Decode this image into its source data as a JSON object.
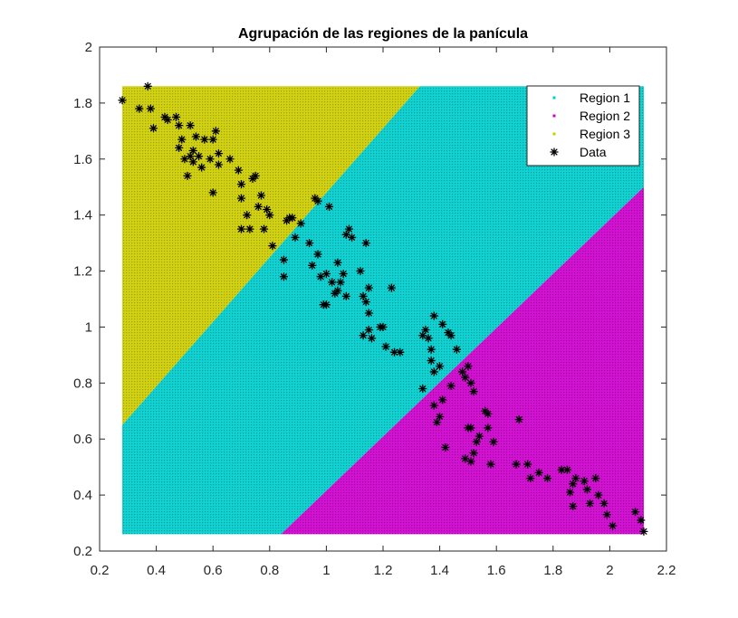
{
  "chart_data": {
    "type": "scatter",
    "title": "Agrupación de las regiones de la panícula",
    "xlabel": "",
    "ylabel": "",
    "xlim": [
      0.2,
      2.2
    ],
    "ylim": [
      0.2,
      2.0
    ],
    "xticks": [
      "0.2",
      "0.4",
      "0.6",
      "0.8",
      "1",
      "1.2",
      "1.4",
      "1.6",
      "1.8",
      "2",
      "2.2"
    ],
    "yticks": [
      "0.2",
      "0.4",
      "0.6",
      "0.8",
      "1",
      "1.2",
      "1.4",
      "1.6",
      "1.8",
      "2"
    ],
    "grid": false,
    "legend_position": "top-right",
    "colors": {
      "region1": "#00cccc",
      "region2": "#cc00cc",
      "region3": "#cccc00",
      "data": "#000000",
      "axes": "#262626"
    },
    "regions": [
      {
        "name": "Region 1",
        "color": "#00cccc",
        "polygon": [
          [
            0.28,
            0.26
          ],
          [
            0.84,
            0.26
          ],
          [
            2.12,
            1.5
          ],
          [
            2.12,
            1.86
          ],
          [
            1.33,
            1.86
          ],
          [
            0.28,
            0.65
          ]
        ]
      },
      {
        "name": "Region 2",
        "color": "#cc00cc",
        "polygon": [
          [
            0.84,
            0.26
          ],
          [
            2.12,
            0.26
          ],
          [
            2.12,
            1.5
          ]
        ]
      },
      {
        "name": "Region 3",
        "color": "#cccc00",
        "polygon": [
          [
            0.28,
            0.65
          ],
          [
            0.28,
            1.86
          ],
          [
            1.33,
            1.86
          ]
        ]
      }
    ],
    "series": [
      {
        "name": "Data",
        "marker": "*",
        "color": "#000000",
        "points": [
          [
            0.28,
            1.81
          ],
          [
            0.34,
            1.78
          ],
          [
            0.37,
            1.86
          ],
          [
            0.38,
            1.78
          ],
          [
            0.39,
            1.71
          ],
          [
            0.43,
            1.75
          ],
          [
            0.44,
            1.74
          ],
          [
            0.47,
            1.75
          ],
          [
            0.48,
            1.72
          ],
          [
            0.48,
            1.64
          ],
          [
            0.49,
            1.67
          ],
          [
            0.5,
            1.6
          ],
          [
            0.51,
            1.54
          ],
          [
            0.52,
            1.72
          ],
          [
            0.52,
            1.61
          ],
          [
            0.53,
            1.59
          ],
          [
            0.53,
            1.63
          ],
          [
            0.54,
            1.68
          ],
          [
            0.55,
            1.61
          ],
          [
            0.56,
            1.57
          ],
          [
            0.57,
            1.67
          ],
          [
            0.59,
            1.6
          ],
          [
            0.6,
            1.67
          ],
          [
            0.6,
            1.48
          ],
          [
            0.61,
            1.7
          ],
          [
            0.62,
            1.62
          ],
          [
            0.62,
            1.58
          ],
          [
            0.66,
            1.6
          ],
          [
            0.69,
            1.56
          ],
          [
            0.7,
            1.51
          ],
          [
            0.7,
            1.46
          ],
          [
            0.7,
            1.35
          ],
          [
            0.72,
            1.4
          ],
          [
            0.73,
            1.35
          ],
          [
            0.74,
            1.53
          ],
          [
            0.75,
            1.54
          ],
          [
            0.76,
            1.43
          ],
          [
            0.77,
            1.47
          ],
          [
            0.78,
            1.35
          ],
          [
            0.79,
            1.42
          ],
          [
            0.8,
            1.4
          ],
          [
            0.81,
            1.29
          ],
          [
            0.85,
            1.24
          ],
          [
            0.85,
            1.18
          ],
          [
            0.86,
            1.38
          ],
          [
            0.87,
            1.39
          ],
          [
            0.88,
            1.39
          ],
          [
            0.89,
            1.32
          ],
          [
            0.91,
            1.37
          ],
          [
            0.94,
            1.3
          ],
          [
            0.95,
            1.22
          ],
          [
            0.96,
            1.46
          ],
          [
            0.97,
            1.45
          ],
          [
            0.97,
            1.26
          ],
          [
            0.98,
            1.18
          ],
          [
            0.99,
            1.08
          ],
          [
            1.0,
            1.08
          ],
          [
            1.0,
            1.19
          ],
          [
            1.01,
            1.43
          ],
          [
            1.02,
            1.16
          ],
          [
            1.03,
            1.12
          ],
          [
            1.04,
            1.23
          ],
          [
            1.04,
            1.13
          ],
          [
            1.05,
            1.16
          ],
          [
            1.06,
            1.19
          ],
          [
            1.07,
            1.33
          ],
          [
            1.07,
            1.11
          ],
          [
            1.08,
            1.35
          ],
          [
            1.09,
            1.32
          ],
          [
            1.12,
            1.2
          ],
          [
            1.13,
            1.11
          ],
          [
            1.14,
            1.09
          ],
          [
            1.14,
            1.3
          ],
          [
            1.15,
            1.14
          ],
          [
            1.15,
            1.05
          ],
          [
            1.13,
            0.97
          ],
          [
            1.15,
            0.99
          ],
          [
            1.16,
            0.96
          ],
          [
            1.19,
            1.0
          ],
          [
            1.2,
            1.0
          ],
          [
            1.21,
            0.93
          ],
          [
            1.23,
            1.14
          ],
          [
            1.24,
            0.91
          ],
          [
            1.26,
            0.91
          ],
          [
            1.34,
            0.97
          ],
          [
            1.35,
            0.99
          ],
          [
            1.36,
            0.96
          ],
          [
            1.37,
            0.92
          ],
          [
            1.37,
            0.88
          ],
          [
            1.38,
            1.04
          ],
          [
            1.38,
            0.84
          ],
          [
            1.4,
            0.86
          ],
          [
            1.41,
            1.01
          ],
          [
            1.43,
            0.98
          ],
          [
            1.44,
            0.97
          ],
          [
            1.46,
            0.92
          ],
          [
            1.34,
            0.78
          ],
          [
            1.38,
            0.72
          ],
          [
            1.39,
            0.66
          ],
          [
            1.4,
            0.68
          ],
          [
            1.41,
            0.74
          ],
          [
            1.42,
            0.57
          ],
          [
            1.44,
            0.79
          ],
          [
            1.48,
            0.84
          ],
          [
            1.49,
            0.82
          ],
          [
            1.5,
            0.86
          ],
          [
            1.51,
            0.8
          ],
          [
            1.52,
            0.77
          ],
          [
            1.5,
            0.64
          ],
          [
            1.51,
            0.64
          ],
          [
            1.49,
            0.53
          ],
          [
            1.51,
            0.52
          ],
          [
            1.52,
            0.55
          ],
          [
            1.53,
            0.59
          ],
          [
            1.54,
            0.61
          ],
          [
            1.56,
            0.7
          ],
          [
            1.57,
            0.69
          ],
          [
            1.57,
            0.64
          ],
          [
            1.58,
            0.51
          ],
          [
            1.59,
            0.59
          ],
          [
            1.67,
            0.51
          ],
          [
            1.68,
            0.67
          ],
          [
            1.71,
            0.51
          ],
          [
            1.72,
            0.46
          ],
          [
            1.75,
            0.48
          ],
          [
            1.78,
            0.46
          ],
          [
            1.83,
            0.49
          ],
          [
            1.85,
            0.49
          ],
          [
            1.86,
            0.41
          ],
          [
            1.87,
            0.44
          ],
          [
            1.87,
            0.36
          ],
          [
            1.88,
            0.46
          ],
          [
            1.91,
            0.45
          ],
          [
            1.92,
            0.42
          ],
          [
            1.93,
            0.37
          ],
          [
            1.95,
            0.46
          ],
          [
            1.96,
            0.4
          ],
          [
            1.98,
            0.37
          ],
          [
            1.99,
            0.33
          ],
          [
            2.01,
            0.29
          ],
          [
            2.09,
            0.34
          ],
          [
            2.11,
            0.31
          ],
          [
            2.12,
            0.27
          ]
        ]
      }
    ],
    "legend": [
      {
        "label": "Region 1",
        "marker": ".",
        "color": "#00cccc"
      },
      {
        "label": "Region 2",
        "marker": ".",
        "color": "#cc00cc"
      },
      {
        "label": "Region 3",
        "marker": ".",
        "color": "#cccc00"
      },
      {
        "label": "Data",
        "marker": "*",
        "color": "#000000"
      }
    ]
  }
}
